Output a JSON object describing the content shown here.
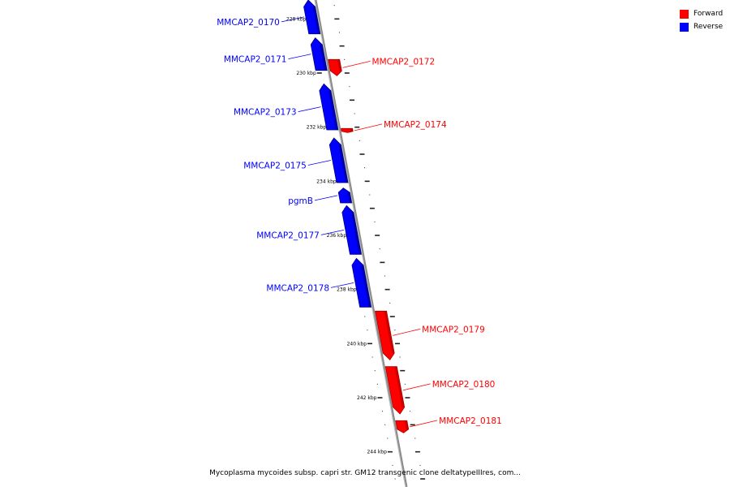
{
  "legend": {
    "forward_label": "Forward",
    "reverse_label": "Reverse",
    "forward_color": "#ff0000",
    "reverse_color": "#0000ff"
  },
  "caption": "Mycoplasma mycoides subsp. capri str. GM12 transgenic clone deltatypeIIIres, com...",
  "chart_data": {
    "type": "linear-genome-map",
    "unit": "kbp",
    "range_kbp": [
      227.3,
      245.3
    ],
    "tick_labels": [
      {
        "label": "228 kbp",
        "pos": 228
      },
      {
        "label": "230 kbp",
        "pos": 230
      },
      {
        "label": "232 kbp",
        "pos": 232
      },
      {
        "label": "234 kbp",
        "pos": 234
      },
      {
        "label": "236 kbp",
        "pos": 236
      },
      {
        "label": "238 kbp",
        "pos": 238
      },
      {
        "label": "240 kbp",
        "pos": 240
      },
      {
        "label": "242 kbp",
        "pos": 242
      },
      {
        "label": "244 kbp",
        "pos": 244
      }
    ],
    "genes": [
      {
        "name": "MMCAP2_0170",
        "strand": "reverse",
        "start": 227.3,
        "end": 228.55
      },
      {
        "name": "MMCAP2_0171",
        "strand": "reverse",
        "start": 228.7,
        "end": 229.9
      },
      {
        "name": "MMCAP2_0172",
        "strand": "forward",
        "start": 229.5,
        "end": 230.1
      },
      {
        "name": "MMCAP2_0173",
        "strand": "reverse",
        "start": 230.4,
        "end": 232.1
      },
      {
        "name": "MMCAP2_0174",
        "strand": "forward",
        "start": 232.05,
        "end": 232.2
      },
      {
        "name": "MMCAP2_0175",
        "strand": "reverse",
        "start": 232.4,
        "end": 234.05
      },
      {
        "name": "pgmB",
        "strand": "reverse",
        "start": 234.25,
        "end": 234.8
      },
      {
        "name": "MMCAP2_0177",
        "strand": "reverse",
        "start": 234.9,
        "end": 236.7
      },
      {
        "name": "MMCAP2_0178",
        "strand": "reverse",
        "start": 236.85,
        "end": 238.65
      },
      {
        "name": "MMCAP2_0179",
        "strand": "forward",
        "start": 238.8,
        "end": 240.6
      },
      {
        "name": "MMCAP2_0180",
        "strand": "forward",
        "start": 240.85,
        "end": 242.6
      },
      {
        "name": "MMCAP2_0181",
        "strand": "forward",
        "start": 242.85,
        "end": 243.3
      }
    ]
  }
}
